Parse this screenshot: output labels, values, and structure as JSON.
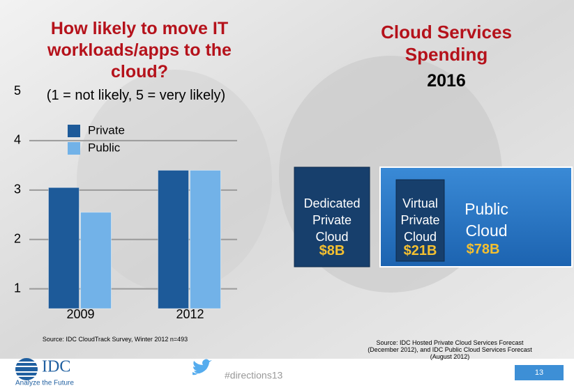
{
  "chart_data": {
    "type": "bar",
    "title": "How likely to move IT workloads/apps to the cloud?",
    "subtitle": "(1 = not likely, 5 = very likely)",
    "categories": [
      "2009",
      "2012"
    ],
    "series": [
      {
        "name": "Private",
        "color": "#1d5a99",
        "values": [
          3.05,
          3.4
        ]
      },
      {
        "name": "Public",
        "color": "#72b2e8",
        "values": [
          2.55,
          3.4
        ]
      }
    ],
    "ylim": [
      0.6,
      5
    ],
    "yticks": [
      1,
      2,
      3,
      4,
      5
    ],
    "grid": true,
    "source": "Source: IDC CloudTrack Survey, Winter 2012  n=493"
  },
  "spending": {
    "title": "Cloud Services Spending",
    "year": "2016",
    "dedicated": {
      "label": "Dedicated Private Cloud",
      "amount": "$8B"
    },
    "virtual": {
      "label": "Virtual Private Cloud",
      "amount": "$21B"
    },
    "public": {
      "label": "Public Cloud",
      "amount": "$78B"
    },
    "source": "Source: IDC Hosted Private Cloud Services Forecast (December 2012), and IDC Public Cloud Services Forecast (August 2012)"
  },
  "footer": {
    "logo": "IDC",
    "tagline": "Analyze the Future",
    "hashtag": "#directions13",
    "page": "13"
  }
}
